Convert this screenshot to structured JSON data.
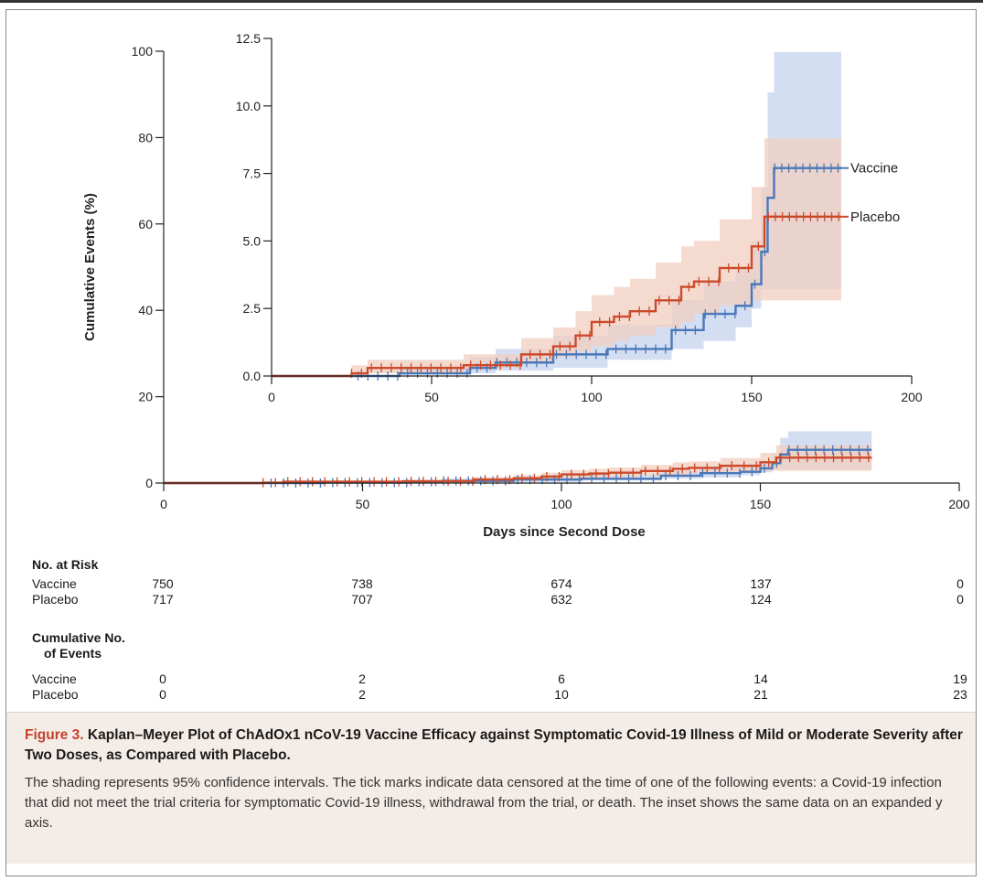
{
  "chart_data": [
    {
      "type": "line",
      "name": "main",
      "xlabel": "Days since Second Dose",
      "ylabel": "Cumulative Events (%)",
      "xlim": [
        0,
        200
      ],
      "ylim": [
        0,
        100
      ],
      "xticks": [
        0,
        50,
        100,
        150,
        200
      ],
      "yticks": [
        0,
        20,
        40,
        60,
        80,
        100
      ],
      "series": [
        {
          "name": "Vaccine",
          "color": "#4a78b8",
          "ci_color": "#c5d3ed",
          "x": [
            0,
            40,
            62,
            70,
            88,
            105,
            125,
            135,
            145,
            150,
            153,
            155,
            157,
            178
          ],
          "y": [
            0,
            0.1,
            0.3,
            0.5,
            0.8,
            1.0,
            1.7,
            2.3,
            2.6,
            3.4,
            4.6,
            6.6,
            7.7,
            7.7
          ],
          "ci_low": [
            0,
            0,
            0.05,
            0.1,
            0.2,
            0.3,
            0.6,
            1.0,
            1.3,
            1.8,
            2.5,
            3.2,
            3.2,
            3.2
          ],
          "ci_high": [
            0,
            0.4,
            0.7,
            1.0,
            1.5,
            1.9,
            2.8,
            3.5,
            4.0,
            5.0,
            7.0,
            10.5,
            12.0,
            12.0
          ]
        },
        {
          "name": "Placebo",
          "color": "#cc4a2c",
          "ci_color": "#f2cfbf",
          "x": [
            0,
            25,
            30,
            60,
            78,
            88,
            95,
            100,
            107,
            112,
            120,
            128,
            132,
            140,
            150,
            154,
            156,
            178
          ],
          "y": [
            0,
            0.1,
            0.3,
            0.4,
            0.8,
            1.1,
            1.5,
            2.0,
            2.2,
            2.4,
            2.8,
            3.3,
            3.5,
            4.0,
            4.8,
            5.9,
            5.9,
            5.9
          ],
          "ci_low": [
            0,
            0,
            0.05,
            0.1,
            0.3,
            0.5,
            0.7,
            0.9,
            1.1,
            1.3,
            1.5,
            1.8,
            2.0,
            2.3,
            2.6,
            2.8,
            2.8,
            2.8
          ],
          "ci_high": [
            0,
            0.4,
            0.6,
            0.8,
            1.4,
            1.8,
            2.4,
            3.0,
            3.3,
            3.6,
            4.2,
            4.8,
            5.0,
            5.8,
            7.0,
            8.8,
            8.8,
            8.8
          ]
        }
      ]
    },
    {
      "type": "line",
      "name": "inset",
      "xlim": [
        0,
        200
      ],
      "ylim": [
        0,
        12.5
      ],
      "xticks": [
        0,
        50,
        100,
        150,
        200
      ],
      "yticks": [
        0.0,
        2.5,
        5.0,
        7.5,
        10.0,
        12.5
      ],
      "ytick_labels": [
        "0.0",
        "2.5",
        "5.0",
        "7.5",
        "10.0",
        "12.5"
      ],
      "series_labels": [
        "Vaccine",
        "Placebo"
      ]
    }
  ],
  "risk_table": {
    "at_risk_title": "No. at Risk",
    "events_title_line1": "Cumulative No.",
    "events_title_line2": "of Events",
    "label_vaccine": "Vaccine",
    "label_placebo": "Placebo",
    "at_risk_vaccine": [
      "750",
      "738",
      "674",
      "137",
      "0"
    ],
    "at_risk_placebo": [
      "717",
      "707",
      "632",
      "124",
      "0"
    ],
    "events_vaccine": [
      "0",
      "2",
      "6",
      "14",
      "19"
    ],
    "events_placebo": [
      "0",
      "2",
      "10",
      "21",
      "23"
    ]
  },
  "caption": {
    "figure_label": "Figure 3.",
    "title": "Kaplan–Meyer Plot of ChAdOx1 nCoV-19 Vaccine Efficacy against Symptomatic Covid-19 Illness of Mild or Moderate Severity after Two Doses, as Compared with Placebo.",
    "body": "The shading represents 95% confidence intervals. The tick marks indicate data censored at the time of one of the following events: a Covid-19 infection that did not meet the trial criteria for symptomatic Covid-19 illness, withdrawal from the trial, or death. The inset shows the same data on an expanded y axis."
  }
}
